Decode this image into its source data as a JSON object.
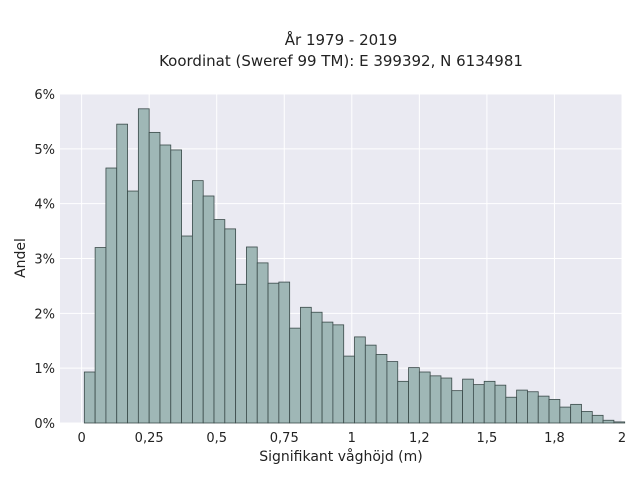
{
  "chart_data": {
    "type": "bar",
    "title": "År 1979 - 2019",
    "subtitle": "Koordinat (Sweref 99 TM): E 399392, N 6134981",
    "xlabel": "Signifikant våghöjd (m)",
    "ylabel": "Andel",
    "xlim": [
      -0.08,
      2
    ],
    "ylim": [
      0,
      6
    ],
    "grid": true,
    "x_ticks": [
      {
        "value": 0,
        "label": "0"
      },
      {
        "value": 0.25,
        "label": "0,25"
      },
      {
        "value": 0.5,
        "label": "0,5"
      },
      {
        "value": 0.75,
        "label": "0,75"
      },
      {
        "value": 1,
        "label": "1"
      },
      {
        "value": 1.25,
        "label": "1,2"
      },
      {
        "value": 1.5,
        "label": "1,5"
      },
      {
        "value": 1.75,
        "label": "1,8"
      },
      {
        "value": 2,
        "label": "2"
      }
    ],
    "y_ticks": [
      {
        "value": 0,
        "label": "0%"
      },
      {
        "value": 1,
        "label": "1%"
      },
      {
        "value": 2,
        "label": "2%"
      },
      {
        "value": 3,
        "label": "3%"
      },
      {
        "value": 4,
        "label": "4%"
      },
      {
        "value": 5,
        "label": "5%"
      },
      {
        "value": 6,
        "label": "6%"
      }
    ],
    "bin_start": 0.01,
    "bin_width": 0.04,
    "values": [
      0.93,
      3.2,
      4.65,
      5.45,
      4.23,
      5.73,
      5.3,
      5.07,
      4.98,
      3.41,
      4.42,
      4.14,
      3.71,
      3.54,
      2.53,
      3.21,
      2.92,
      2.55,
      2.57,
      1.73,
      2.11,
      2.02,
      1.84,
      1.79,
      1.22,
      1.57,
      1.42,
      1.25,
      1.12,
      0.76,
      1.01,
      0.93,
      0.86,
      0.82,
      0.59,
      0.8,
      0.7,
      0.76,
      0.69,
      0.47,
      0.6,
      0.57,
      0.49,
      0.43,
      0.29,
      0.34,
      0.21,
      0.14,
      0.05,
      0.02
    ],
    "bar_color": "#9fb7b6",
    "edge_color": "#3a4a49",
    "plot_background": "#eaeaf2",
    "grid_color": "#ffffff"
  }
}
